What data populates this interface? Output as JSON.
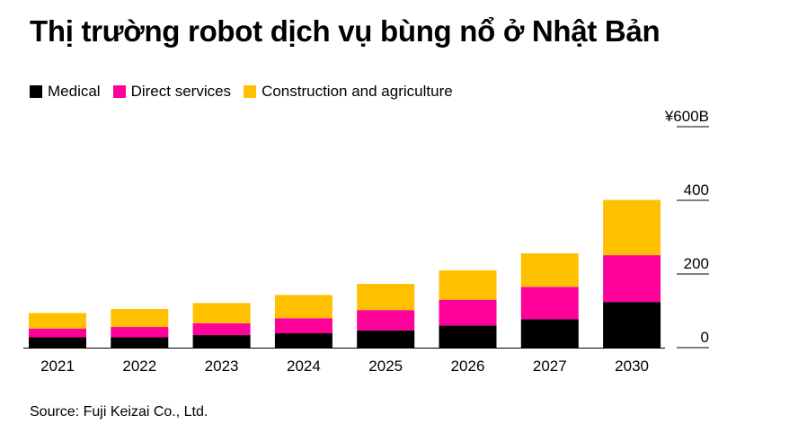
{
  "title": "Thị trường robot dịch vụ bùng nổ ở Nhật Bản",
  "source": "Source: Fuji Keizai Co., Ltd.",
  "colors": {
    "medical": "#000000",
    "direct_services": "#ff0099",
    "construction_agriculture": "#ffc000"
  },
  "chart_data": {
    "type": "bar",
    "stacked": true,
    "categories": [
      "2021",
      "2022",
      "2023",
      "2024",
      "2025",
      "2026",
      "2027",
      "2030"
    ],
    "series": [
      {
        "name": "Medical",
        "color": "#000000",
        "values": [
          28,
          28,
          34,
          39,
          47,
          60,
          77,
          124
        ]
      },
      {
        "name": "Direct services",
        "color": "#ff0099",
        "values": [
          24,
          28,
          32,
          41,
          55,
          70,
          88,
          127
        ]
      },
      {
        "name": "Construction and agriculture",
        "color": "#ffc000",
        "values": [
          42,
          49,
          55,
          63,
          71,
          80,
          91,
          150
        ]
      }
    ],
    "ylim": [
      0,
      600
    ],
    "yticks": [
      0,
      200,
      400,
      600
    ],
    "ytick_labels": [
      "0",
      "200",
      "400",
      "¥600B"
    ],
    "ylabel": "",
    "xlabel": "",
    "legend_position": "top-left",
    "grid": true
  }
}
